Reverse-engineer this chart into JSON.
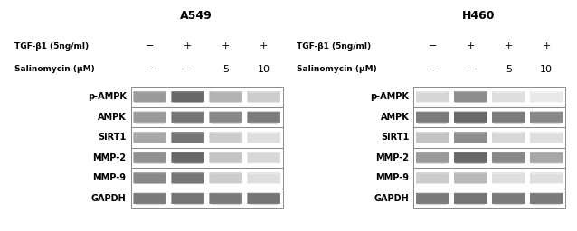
{
  "title_left": "A549",
  "title_right": "H460",
  "row_labels": [
    "p-AMPK",
    "AMPK",
    "SIRT1",
    "MMP-2",
    "MMP-9",
    "GAPDH"
  ],
  "condition_label1": "TGF-β1 (5ng/ml)",
  "condition_label2": "Salinomycin (μM)",
  "condition_signs_tgf": [
    "−",
    "+",
    "+",
    "+"
  ],
  "condition_signs_sal": [
    "−",
    "−",
    "5",
    "10"
  ],
  "fig_bg": "#ffffff",
  "bands_left": {
    "p-AMPK": [
      0.55,
      0.82,
      0.42,
      0.28
    ],
    "AMPK": [
      0.55,
      0.75,
      0.65,
      0.72
    ],
    "SIRT1": [
      0.48,
      0.75,
      0.28,
      0.18
    ],
    "MMP-2": [
      0.6,
      0.82,
      0.32,
      0.22
    ],
    "MMP-9": [
      0.65,
      0.75,
      0.28,
      0.18
    ],
    "GAPDH": [
      0.72,
      0.75,
      0.72,
      0.75
    ]
  },
  "bands_right": {
    "p-AMPK": [
      0.22,
      0.62,
      0.18,
      0.12
    ],
    "AMPK": [
      0.72,
      0.82,
      0.72,
      0.65
    ],
    "SIRT1": [
      0.32,
      0.62,
      0.22,
      0.18
    ],
    "MMP-2": [
      0.55,
      0.82,
      0.65,
      0.48
    ],
    "MMP-9": [
      0.28,
      0.38,
      0.18,
      0.18
    ],
    "GAPDH": [
      0.72,
      0.75,
      0.72,
      0.72
    ]
  }
}
